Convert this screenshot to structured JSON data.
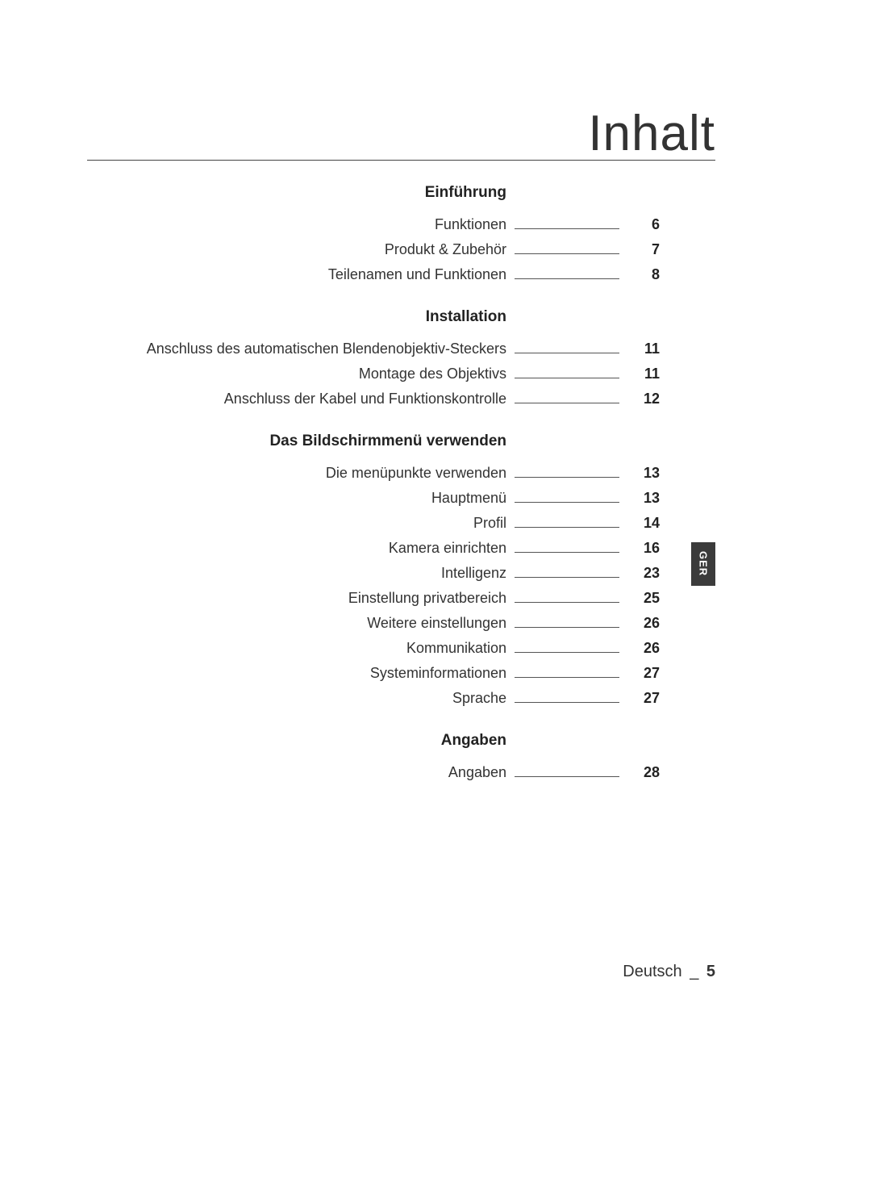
{
  "title": "Inhalt",
  "side_tab": "GER",
  "footer": {
    "language": "Deutsch",
    "dash": "_",
    "page": "5"
  },
  "colors": {
    "text": "#222222",
    "title": "#333333",
    "rule": "#444444",
    "leader": "#555555",
    "tab_bg": "#3b3b3b",
    "tab_fg": "#ffffff",
    "bg": "#ffffff"
  },
  "sections": [
    {
      "header": "Einführung",
      "items": [
        {
          "label": "Funktionen",
          "page": "6"
        },
        {
          "label": "Produkt & Zubehör",
          "page": "7"
        },
        {
          "label": "Teilenamen und Funktionen",
          "page": "8"
        }
      ]
    },
    {
      "header": "Installation",
      "items": [
        {
          "label": "Anschluss des automatischen Blendenobjektiv-Steckers",
          "page": "11"
        },
        {
          "label": "Montage des Objektivs",
          "page": "11"
        },
        {
          "label": "Anschluss der Kabel und Funktionskontrolle",
          "page": "12"
        }
      ]
    },
    {
      "header": "Das Bildschirmmenü verwenden",
      "items": [
        {
          "label": "Die menüpunkte verwenden",
          "page": "13"
        },
        {
          "label": "Hauptmenü",
          "page": "13"
        },
        {
          "label": "Profil",
          "page": "14"
        },
        {
          "label": "Kamera einrichten",
          "page": "16"
        },
        {
          "label": "Intelligenz",
          "page": "23"
        },
        {
          "label": "Einstellung privatbereich",
          "page": "25"
        },
        {
          "label": "Weitere einstellungen",
          "page": "26"
        },
        {
          "label": "Kommunikation",
          "page": "26"
        },
        {
          "label": "Systeminformationen",
          "page": "27"
        },
        {
          "label": "Sprache",
          "page": "27"
        }
      ]
    },
    {
      "header": "Angaben",
      "items": [
        {
          "label": "Angaben",
          "page": "28"
        }
      ]
    }
  ]
}
